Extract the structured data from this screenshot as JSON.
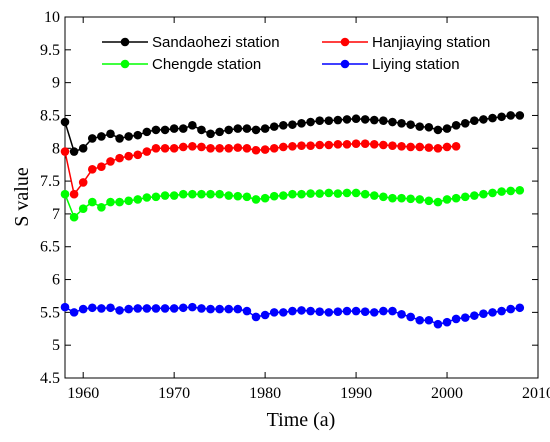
{
  "chart_data": {
    "type": "line",
    "xlabel": "Time (a)",
    "ylabel": "S value",
    "xlim": [
      1958,
      2010
    ],
    "ylim": [
      4.5,
      10
    ],
    "xticks": [
      1960,
      1970,
      1980,
      1990,
      2000,
      2010
    ],
    "yticks": [
      4.5,
      5,
      5.5,
      6,
      6.5,
      7,
      7.5,
      8,
      8.5,
      9,
      9.5,
      10
    ],
    "grid": false,
    "legend": "top",
    "series": [
      {
        "name": "Sandaohezi station",
        "color": "#000000",
        "x": [
          1958,
          1959,
          1960,
          1961,
          1962,
          1963,
          1964,
          1965,
          1966,
          1967,
          1968,
          1969,
          1970,
          1971,
          1972,
          1973,
          1974,
          1975,
          1976,
          1977,
          1978,
          1979,
          1980,
          1981,
          1982,
          1983,
          1984,
          1985,
          1986,
          1987,
          1988,
          1989,
          1990,
          1991,
          1992,
          1993,
          1994,
          1995,
          1996,
          1997,
          1998,
          1999,
          2000,
          2001,
          2002,
          2003,
          2004,
          2005,
          2006,
          2007,
          2008
        ],
        "y": [
          8.4,
          7.95,
          8.0,
          8.15,
          8.18,
          8.22,
          8.15,
          8.18,
          8.2,
          8.25,
          8.28,
          8.28,
          8.3,
          8.3,
          8.35,
          8.28,
          8.22,
          8.25,
          8.28,
          8.3,
          8.3,
          8.28,
          8.3,
          8.33,
          8.35,
          8.36,
          8.38,
          8.4,
          8.42,
          8.42,
          8.43,
          8.44,
          8.45,
          8.44,
          8.43,
          8.42,
          8.4,
          8.38,
          8.36,
          8.33,
          8.32,
          8.28,
          8.3,
          8.35,
          8.38,
          8.42,
          8.44,
          8.46,
          8.48,
          8.5,
          8.5
        ]
      },
      {
        "name": "Hanjiaying station",
        "color": "#ff0000",
        "x": [
          1958,
          1959,
          1960,
          1961,
          1962,
          1963,
          1964,
          1965,
          1966,
          1967,
          1968,
          1969,
          1970,
          1971,
          1972,
          1973,
          1974,
          1975,
          1976,
          1977,
          1978,
          1979,
          1980,
          1981,
          1982,
          1983,
          1984,
          1985,
          1986,
          1987,
          1988,
          1989,
          1990,
          1991,
          1992,
          1993,
          1994,
          1995,
          1996,
          1997,
          1998,
          1999,
          2000,
          2001
        ],
        "y": [
          7.95,
          7.3,
          7.48,
          7.68,
          7.72,
          7.8,
          7.85,
          7.88,
          7.9,
          7.95,
          8.0,
          8.0,
          8.0,
          8.02,
          8.03,
          8.02,
          8.0,
          8.0,
          8.0,
          8.01,
          8.0,
          7.97,
          7.98,
          8.0,
          8.02,
          8.03,
          8.04,
          8.04,
          8.05,
          8.05,
          8.06,
          8.06,
          8.07,
          8.07,
          8.06,
          8.05,
          8.04,
          8.03,
          8.02,
          8.02,
          8.01,
          8.0,
          8.02,
          8.03
        ]
      },
      {
        "name": "Chengde station",
        "color": "#00ff00",
        "x": [
          1958,
          1959,
          1960,
          1961,
          1962,
          1963,
          1964,
          1965,
          1966,
          1967,
          1968,
          1969,
          1970,
          1971,
          1972,
          1973,
          1974,
          1975,
          1976,
          1977,
          1978,
          1979,
          1980,
          1981,
          1982,
          1983,
          1984,
          1985,
          1986,
          1987,
          1988,
          1989,
          1990,
          1991,
          1992,
          1993,
          1994,
          1995,
          1996,
          1997,
          1998,
          1999,
          2000,
          2001,
          2002,
          2003,
          2004,
          2005,
          2006,
          2007,
          2008
        ],
        "y": [
          7.3,
          6.95,
          7.08,
          7.18,
          7.1,
          7.18,
          7.18,
          7.2,
          7.22,
          7.25,
          7.26,
          7.28,
          7.28,
          7.3,
          7.3,
          7.3,
          7.3,
          7.3,
          7.28,
          7.27,
          7.26,
          7.22,
          7.24,
          7.27,
          7.28,
          7.3,
          7.3,
          7.31,
          7.31,
          7.32,
          7.31,
          7.32,
          7.32,
          7.3,
          7.28,
          7.26,
          7.24,
          7.24,
          7.23,
          7.22,
          7.2,
          7.18,
          7.22,
          7.24,
          7.26,
          7.28,
          7.3,
          7.32,
          7.34,
          7.35,
          7.36
        ]
      },
      {
        "name": "Liying station",
        "color": "#0000ff",
        "x": [
          1958,
          1959,
          1960,
          1961,
          1962,
          1963,
          1964,
          1965,
          1966,
          1967,
          1968,
          1969,
          1970,
          1971,
          1972,
          1973,
          1974,
          1975,
          1976,
          1977,
          1978,
          1979,
          1980,
          1981,
          1982,
          1983,
          1984,
          1985,
          1986,
          1987,
          1988,
          1989,
          1990,
          1991,
          1992,
          1993,
          1994,
          1995,
          1996,
          1997,
          1998,
          1999,
          2000,
          2001,
          2002,
          2003,
          2004,
          2005,
          2006,
          2007,
          2008
        ],
        "y": [
          5.58,
          5.5,
          5.55,
          5.57,
          5.56,
          5.57,
          5.53,
          5.55,
          5.56,
          5.56,
          5.56,
          5.56,
          5.56,
          5.57,
          5.58,
          5.56,
          5.55,
          5.55,
          5.55,
          5.55,
          5.52,
          5.43,
          5.46,
          5.5,
          5.5,
          5.52,
          5.53,
          5.52,
          5.51,
          5.5,
          5.51,
          5.52,
          5.52,
          5.51,
          5.5,
          5.52,
          5.52,
          5.47,
          5.43,
          5.38,
          5.38,
          5.32,
          5.35,
          5.4,
          5.42,
          5.45,
          5.48,
          5.5,
          5.52,
          5.55,
          5.57
        ]
      }
    ]
  }
}
